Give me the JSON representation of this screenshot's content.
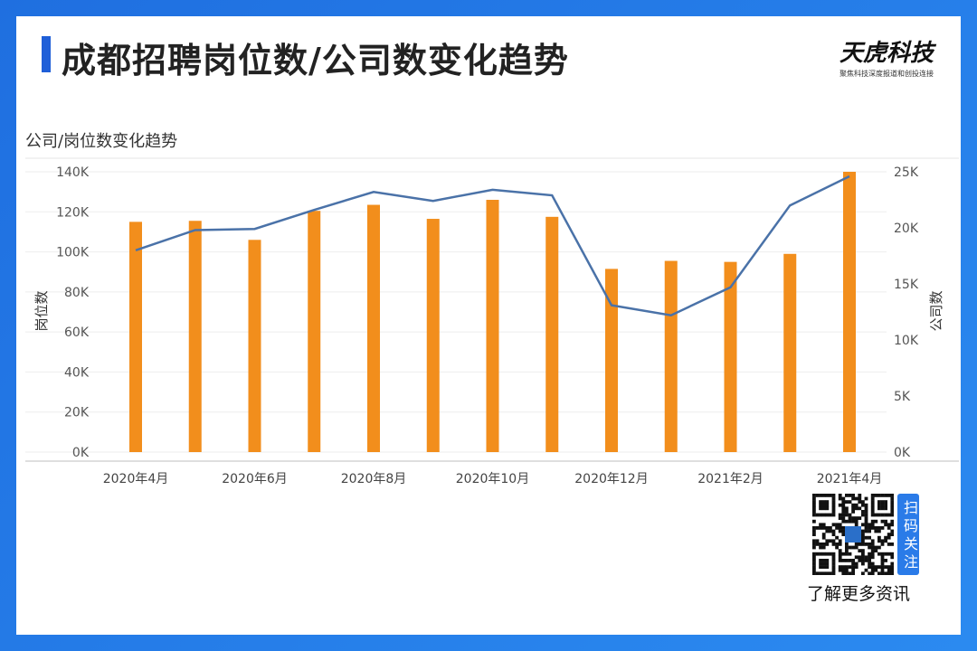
{
  "header": {
    "title": "成都招聘岗位数/公司数变化趋势",
    "brand_name": "天虎科技",
    "brand_tagline": "聚焦科技深度报道和创投连接"
  },
  "footer": {
    "scan_label": "扫码关注",
    "more_info": "了解更多资讯"
  },
  "colors": {
    "bar": "#f28e1c",
    "line": "#4a72a8",
    "accent": "#1f5fd8"
  },
  "chart_data": {
    "type": "bar",
    "title": "公司/岗位数变化趋势",
    "ylabel": "岗位数",
    "y2label": "公司数",
    "ylim": [
      0,
      140000
    ],
    "y2lim": [
      0,
      25000
    ],
    "yticks": [
      "0K",
      "20K",
      "40K",
      "60K",
      "80K",
      "100K",
      "120K",
      "140K"
    ],
    "y2ticks": [
      "0K",
      "5K",
      "10K",
      "15K",
      "20K",
      "25K"
    ],
    "x_tick_labels": [
      "2020年4月",
      "2020年6月",
      "2020年8月",
      "2020年10月",
      "2020年12月",
      "2021年2月",
      "2021年4月"
    ],
    "series": [
      {
        "type": "bar",
        "values": [
          115000,
          115500,
          106000,
          120500,
          123500,
          116500,
          126000,
          117500,
          91500,
          95500,
          95000,
          99000,
          140000
        ]
      },
      {
        "type": "line",
        "axis": "right",
        "values": [
          18000,
          19800,
          19900,
          21600,
          23200,
          22400,
          23400,
          22900,
          13100,
          12200,
          14700,
          22000,
          24600
        ]
      }
    ]
  }
}
